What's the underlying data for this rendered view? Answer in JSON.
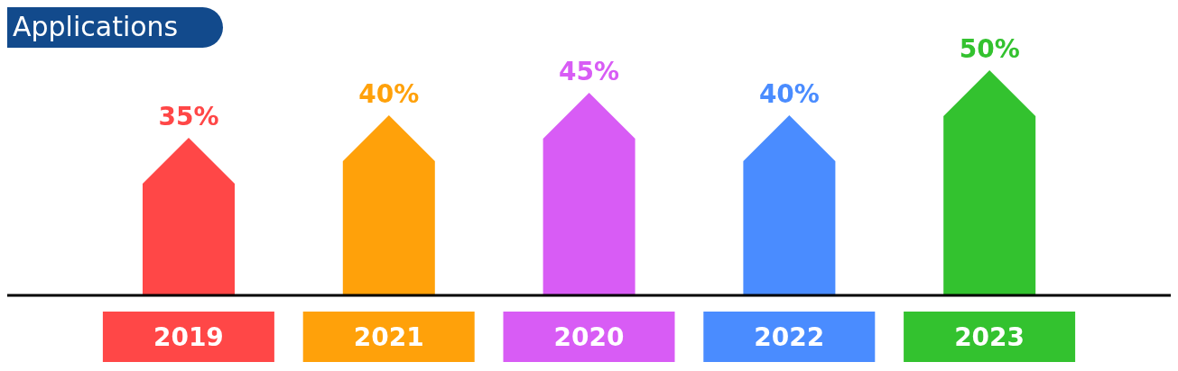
{
  "chart_data": {
    "type": "bar",
    "title": "Applications",
    "categories": [
      "2019",
      "2021",
      "2020",
      "2022",
      "2023"
    ],
    "values": [
      35,
      40,
      45,
      40,
      50
    ],
    "colors": [
      "#ff4747",
      "#ffa10a",
      "#d85cf5",
      "#4a8cff",
      "#33c22f"
    ],
    "value_labels": [
      "35%",
      "40%",
      "45%",
      "40%",
      "50%"
    ],
    "grid": false,
    "legend": false
  }
}
